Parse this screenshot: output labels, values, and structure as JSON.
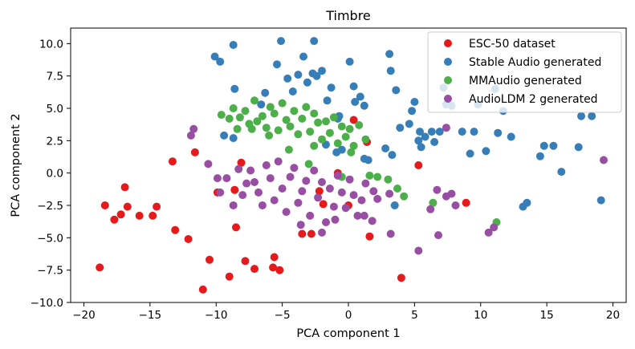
{
  "chart_data": {
    "type": "scatter",
    "title": "Timbre",
    "xlabel": "PCA component 1",
    "ylabel": "PCA component 2",
    "xlim": [
      -21,
      21
    ],
    "ylim": [
      -10,
      11.2
    ],
    "xticks": [
      -20,
      -15,
      -10,
      -5,
      0,
      5,
      10,
      15,
      20
    ],
    "yticks": [
      -10.0,
      -7.5,
      -5.0,
      -2.5,
      0.0,
      2.5,
      5.0,
      7.5,
      10.0
    ],
    "xtick_labels": [
      "−20",
      "−15",
      "−10",
      "−5",
      "0",
      "5",
      "10",
      "15",
      "20"
    ],
    "ytick_labels": [
      "−10.0",
      "−7.5",
      "−5.0",
      "−2.5",
      "0.0",
      "2.5",
      "5.0",
      "7.5",
      "10.0"
    ],
    "grid": false,
    "legend_position": "top-right",
    "series": [
      {
        "name": "ESC-50 dataset",
        "color": "#e41a1c",
        "points": [
          [
            -18.8,
            -7.3
          ],
          [
            -18.4,
            -2.5
          ],
          [
            -17.7,
            -3.6
          ],
          [
            -17.2,
            -3.2
          ],
          [
            -16.9,
            -1.1
          ],
          [
            -16.7,
            -2.6
          ],
          [
            -15.8,
            -3.3
          ],
          [
            -14.8,
            -3.3
          ],
          [
            -14.5,
            -2.6
          ],
          [
            -13.3,
            0.9
          ],
          [
            -13.1,
            -4.4
          ],
          [
            -12.1,
            -5.1
          ],
          [
            -11.6,
            1.6
          ],
          [
            -11.0,
            -9.0
          ],
          [
            -10.5,
            -6.7
          ],
          [
            -9.9,
            -1.5
          ],
          [
            -9.0,
            -8.0
          ],
          [
            -8.6,
            -1.3
          ],
          [
            -8.5,
            -4.2
          ],
          [
            -8.1,
            0.8
          ],
          [
            -7.8,
            -6.8
          ],
          [
            -7.1,
            -7.4
          ],
          [
            -5.7,
            -7.3
          ],
          [
            -5.6,
            -6.5
          ],
          [
            -5.2,
            -7.5
          ],
          [
            -3.5,
            -4.7
          ],
          [
            -2.8,
            -4.7
          ],
          [
            -2.2,
            -1.4
          ],
          [
            -1.9,
            -2.4
          ],
          [
            -0.8,
            0.0
          ],
          [
            0.0,
            -2.5
          ],
          [
            0.4,
            4.1
          ],
          [
            1.4,
            2.4
          ],
          [
            1.6,
            -4.9
          ],
          [
            4.0,
            -8.1
          ],
          [
            5.3,
            0.6
          ],
          [
            8.9,
            -2.3
          ]
        ]
      },
      {
        "name": "Stable Audio generated",
        "color": "#377eb8",
        "points": [
          [
            -10.1,
            9.0
          ],
          [
            -9.7,
            8.6
          ],
          [
            -9.4,
            2.9
          ],
          [
            -8.7,
            9.9
          ],
          [
            -8.6,
            6.5
          ],
          [
            -8.7,
            2.7
          ],
          [
            -6.6,
            5.3
          ],
          [
            -6.3,
            6.2
          ],
          [
            -5.4,
            8.4
          ],
          [
            -5.1,
            10.2
          ],
          [
            -4.6,
            7.3
          ],
          [
            -4.2,
            6.3
          ],
          [
            -3.8,
            7.6
          ],
          [
            -3.4,
            9.0
          ],
          [
            -3.1,
            7.0
          ],
          [
            -2.7,
            7.7
          ],
          [
            -2.4,
            7.5
          ],
          [
            -2.6,
            10.2
          ],
          [
            -2.0,
            7.9
          ],
          [
            -1.7,
            2.2
          ],
          [
            -1.6,
            5.6
          ],
          [
            -1.3,
            6.6
          ],
          [
            -0.9,
            1.6
          ],
          [
            -0.8,
            4.2
          ],
          [
            -0.7,
            4.4
          ],
          [
            -0.5,
            1.8
          ],
          [
            0.1,
            8.6
          ],
          [
            0.4,
            6.7
          ],
          [
            0.5,
            5.5
          ],
          [
            0.9,
            5.9
          ],
          [
            1.2,
            1.1
          ],
          [
            1.2,
            5.2
          ],
          [
            1.5,
            1.0
          ],
          [
            3.1,
            9.2
          ],
          [
            3.2,
            7.9
          ],
          [
            3.6,
            6.4
          ],
          [
            2.8,
            1.9
          ],
          [
            3.3,
            1.4
          ],
          [
            3.5,
            -2.5
          ],
          [
            3.9,
            3.5
          ],
          [
            4.6,
            3.8
          ],
          [
            4.8,
            4.8
          ],
          [
            5.0,
            5.5
          ],
          [
            5.4,
            3.2
          ],
          [
            5.3,
            2.5
          ],
          [
            5.5,
            2.0
          ],
          [
            5.8,
            2.8
          ],
          [
            6.3,
            3.2
          ],
          [
            6.5,
            2.4
          ],
          [
            6.9,
            3.2
          ],
          [
            7.2,
            6.6
          ],
          [
            7.4,
            5.3
          ],
          [
            7.8,
            5.2
          ],
          [
            8.6,
            3.2
          ],
          [
            9.2,
            1.5
          ],
          [
            9.5,
            3.2
          ],
          [
            9.8,
            5.3
          ],
          [
            10.4,
            1.7
          ],
          [
            11.1,
            6.5
          ],
          [
            11.3,
            3.1
          ],
          [
            11.7,
            4.8
          ],
          [
            12.3,
            2.8
          ],
          [
            13.2,
            -2.6
          ],
          [
            13.5,
            -2.3
          ],
          [
            14.5,
            1.3
          ],
          [
            14.8,
            2.1
          ],
          [
            15.5,
            2.1
          ],
          [
            16.1,
            0.1
          ],
          [
            17.4,
            2.0
          ],
          [
            17.6,
            4.4
          ],
          [
            18.4,
            4.4
          ],
          [
            19.1,
            -2.1
          ]
        ]
      },
      {
        "name": "MMAudio generated",
        "color": "#4daf4a",
        "points": [
          [
            -9.6,
            4.5
          ],
          [
            -9.0,
            4.2
          ],
          [
            -8.7,
            5.0
          ],
          [
            -8.4,
            3.4
          ],
          [
            -8.2,
            4.3
          ],
          [
            -7.8,
            4.8
          ],
          [
            -7.5,
            3.8
          ],
          [
            -7.3,
            3.4
          ],
          [
            -7.1,
            5.6
          ],
          [
            -6.9,
            4.0
          ],
          [
            -6.5,
            4.4
          ],
          [
            -6.2,
            3.5
          ],
          [
            -5.9,
            5.1
          ],
          [
            -5.6,
            4.6
          ],
          [
            -5.3,
            3.3
          ],
          [
            -5.0,
            5.4
          ],
          [
            -4.7,
            4.1
          ],
          [
            -4.4,
            3.6
          ],
          [
            -4.1,
            4.8
          ],
          [
            -3.8,
            3.0
          ],
          [
            -3.5,
            4.2
          ],
          [
            -3.2,
            5.1
          ],
          [
            -2.9,
            3.2
          ],
          [
            -2.6,
            4.6
          ],
          [
            -2.3,
            3.9
          ],
          [
            -2.0,
            2.6
          ],
          [
            -1.7,
            4.0
          ],
          [
            -1.4,
            3.1
          ],
          [
            -1.1,
            4.3
          ],
          [
            -0.8,
            2.3
          ],
          [
            -0.5,
            3.6
          ],
          [
            -0.2,
            2.8
          ],
          [
            0.1,
            3.4
          ],
          [
            0.4,
            2.1
          ],
          [
            0.8,
            3.7
          ],
          [
            1.3,
            2.6
          ],
          [
            1.6,
            -0.2
          ],
          [
            -6.0,
            2.9
          ],
          [
            -4.5,
            1.8
          ],
          [
            -3.0,
            0.7
          ],
          [
            -2.6,
            2.1
          ],
          [
            -0.5,
            -0.3
          ],
          [
            0.2,
            1.6
          ],
          [
            2.2,
            -0.3
          ],
          [
            3.0,
            -0.5
          ],
          [
            3.7,
            -1.2
          ],
          [
            4.2,
            -1.8
          ],
          [
            6.4,
            -2.3
          ],
          [
            11.2,
            -3.8
          ]
        ]
      },
      {
        "name": "AudioLDM 2 generated",
        "color": "#984ea3",
        "points": [
          [
            -11.9,
            2.9
          ],
          [
            -11.7,
            3.4
          ],
          [
            -10.6,
            0.7
          ],
          [
            -9.9,
            -0.4
          ],
          [
            -9.7,
            -1.5
          ],
          [
            -9.2,
            -0.4
          ],
          [
            -8.7,
            -2.5
          ],
          [
            -8.3,
            0.3
          ],
          [
            -8.0,
            -1.7
          ],
          [
            -7.7,
            -0.8
          ],
          [
            -7.4,
            0.2
          ],
          [
            -7.1,
            -0.7
          ],
          [
            -6.8,
            -1.5
          ],
          [
            -6.5,
            -2.5
          ],
          [
            -6.2,
            0.6
          ],
          [
            -5.9,
            -0.4
          ],
          [
            -5.6,
            -2.1
          ],
          [
            -5.3,
            0.9
          ],
          [
            -5.0,
            -1.2
          ],
          [
            -4.7,
            -3.0
          ],
          [
            -4.4,
            -0.3
          ],
          [
            -4.1,
            0.4
          ],
          [
            -3.8,
            -2.3
          ],
          [
            -3.5,
            -1.4
          ],
          [
            -3.2,
            -0.6
          ],
          [
            -2.9,
            -3.3
          ],
          [
            -2.6,
            0.2
          ],
          [
            -2.3,
            -1.9
          ],
          [
            -2.0,
            -0.7
          ],
          [
            -1.7,
            -3.8
          ],
          [
            -1.4,
            -1.2
          ],
          [
            -1.1,
            -2.6
          ],
          [
            -0.8,
            -0.2
          ],
          [
            -0.5,
            -1.5
          ],
          [
            -0.2,
            -2.7
          ],
          [
            0.1,
            -0.5
          ],
          [
            0.4,
            -1.7
          ],
          [
            0.7,
            -3.3
          ],
          [
            1.0,
            -2.1
          ],
          [
            1.3,
            -0.8
          ],
          [
            1.9,
            -1.4
          ],
          [
            2.2,
            -2.0
          ],
          [
            3.1,
            -1.6
          ],
          [
            -3.6,
            -4.0
          ],
          [
            -2.0,
            -4.6
          ],
          [
            -1.0,
            -3.6
          ],
          [
            1.2,
            -3.3
          ],
          [
            1.8,
            -3.7
          ],
          [
            3.2,
            -4.7
          ],
          [
            5.3,
            -6.0
          ],
          [
            6.2,
            -2.8
          ],
          [
            6.8,
            -4.8
          ],
          [
            6.7,
            -1.3
          ],
          [
            7.4,
            -1.8
          ],
          [
            7.8,
            -1.6
          ],
          [
            8.1,
            -2.5
          ],
          [
            7.4,
            3.5
          ],
          [
            10.6,
            -4.6
          ],
          [
            11.0,
            -4.2
          ],
          [
            19.3,
            1.0
          ]
        ]
      }
    ]
  }
}
